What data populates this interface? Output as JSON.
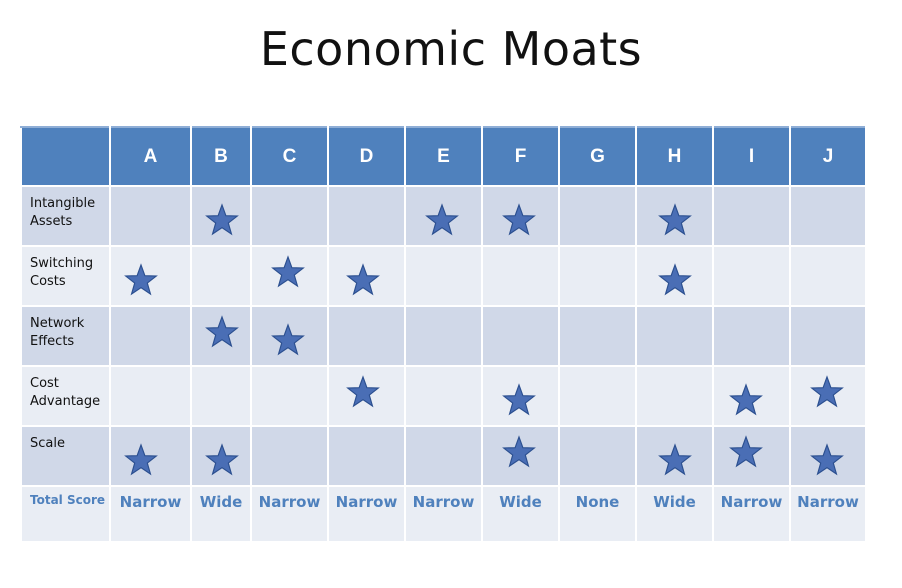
{
  "title": "Economic Moats",
  "columns": [
    "A",
    "B",
    "C",
    "D",
    "E",
    "F",
    "G",
    "H",
    "I",
    "J"
  ],
  "rows": [
    {
      "label": "Intangible Assets",
      "stars": [
        0,
        1,
        0,
        0,
        1,
        1,
        0,
        1,
        0,
        0
      ]
    },
    {
      "label": "Switching Costs",
      "stars": [
        1,
        0,
        1,
        1,
        0,
        0,
        0,
        1,
        0,
        0
      ]
    },
    {
      "label": "Network Effects",
      "stars": [
        0,
        1,
        1,
        0,
        0,
        0,
        0,
        0,
        0,
        0
      ]
    },
    {
      "label": "Cost Advantage",
      "stars": [
        0,
        0,
        0,
        1,
        0,
        1,
        0,
        0,
        1,
        1
      ]
    },
    {
      "label": "Scale",
      "stars": [
        1,
        1,
        0,
        0,
        0,
        1,
        0,
        1,
        1,
        1
      ]
    }
  ],
  "total": {
    "label": "Total Score",
    "values": [
      "Narrow",
      "Wide",
      "Narrow",
      "Narrow",
      "Narrow",
      "Wide",
      "None",
      "Wide",
      "Narrow",
      "Narrow"
    ]
  },
  "colors": {
    "header": "#4f81bd",
    "row_dark": "#d0d8e8",
    "row_light": "#e9edf4",
    "star_fill": "#4a6eb5",
    "star_stroke": "#2b4f8f",
    "total_text": "#4f81bd"
  },
  "icon": "star-icon"
}
